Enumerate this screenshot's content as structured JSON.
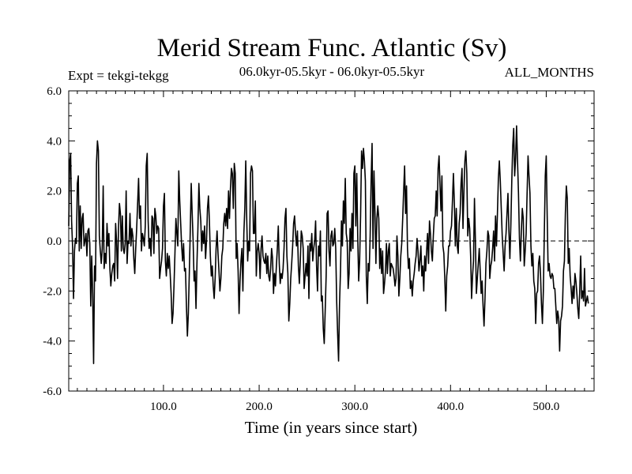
{
  "chart_data": {
    "type": "line",
    "title": "Merid Stream Func. Atlantic (Sv)",
    "subtitle_left": "Expt = tekgi-tekgg",
    "subtitle_center": "06.0kyr-05.5kyr - 06.0kyr-05.5kyr",
    "subtitle_right": "ALL_MONTHS",
    "xlabel": "Time (in years since start)",
    "ylabel": "",
    "xlim": [
      1,
      550
    ],
    "ylim": [
      -6,
      6
    ],
    "xticks": [
      100,
      200,
      300,
      400,
      500
    ],
    "xtick_labels": [
      "100.0",
      "200.0",
      "300.0",
      "400.0",
      "500.0"
    ],
    "yticks": [
      -6,
      -4,
      -2,
      0,
      2,
      4,
      6
    ],
    "ytick_labels": [
      "-6.0",
      "-4.0",
      "-2.0",
      "0.0",
      "2.0",
      "4.0",
      "6.0"
    ],
    "reference_line": {
      "y": 0,
      "style": "dashed"
    },
    "grid": false,
    "line_color": "#000000",
    "series": [
      {
        "x_start": 1,
        "x_step": 1,
        "values": [
          0.6,
          3.2,
          3.5,
          0.8,
          -0.2,
          -2.3,
          -0.4,
          0.1,
          -0.1,
          2.3,
          2.6,
          -0.4,
          1.4,
          -0.3,
          0.9,
          1.1,
          -0.2,
          0.0,
          0.3,
          -0.6,
          0.4,
          0.5,
          -0.1,
          -2.6,
          -0.6,
          -2.1,
          -4.9,
          -1.0,
          -1.6,
          3.1,
          4.0,
          3.6,
          0.2,
          -0.4,
          -0.9,
          -0.3,
          2.2,
          -1.1,
          -0.5,
          -0.9,
          0.7,
          -0.2,
          0.3,
          -1.1,
          -1.8,
          -1.3,
          -1.0,
          -0.9,
          -1.6,
          0.7,
          0.0,
          -1.5,
          0.5,
          1.5,
          1.1,
          -0.4,
          1.0,
          -0.3,
          -0.5,
          -0.1,
          2.0,
          -0.9,
          0.0,
          -0.1,
          1.1,
          -0.2,
          0.5,
          0.2,
          -0.7,
          -1.3,
          -0.3,
          0.5,
          1.5,
          2.5,
          0.9,
          1.4,
          -0.4,
          0.3,
          0.1,
          -0.2,
          0.6,
          3.0,
          3.5,
          0.8,
          -0.3,
          0.1,
          -0.6,
          1.0,
          0.9,
          -0.5,
          1.3,
          1.0,
          0.3,
          0.6,
          0.5,
          -1.5,
          -1.1,
          -0.8,
          -0.3,
          1.4,
          1.9,
          -0.8,
          -1.4,
          -0.5,
          -1.1,
          -0.6,
          -1.3,
          -2.1,
          -3.3,
          -2.9,
          -1.8,
          -0.5,
          0.9,
          0.3,
          -0.2,
          2.8,
          1.6,
          0.7,
          -0.2,
          -0.8,
          -0.1,
          -1.2,
          -1.1,
          -2.6,
          -3.8,
          -2.9,
          -1.3,
          0.4,
          2.3,
          1.1,
          0.0,
          -1.6,
          -1.2,
          -2.7,
          -0.9,
          0.5,
          2.3,
          1.3,
          0.8,
          -0.4,
          0.4,
          -0.1,
          0.6,
          -0.7,
          0.0,
          1.3,
          1.8,
          0.8,
          -0.6,
          -1.4,
          -1.0,
          -1.8,
          -2.3,
          -1.5,
          -0.3,
          0.4,
          -0.5,
          -1.2,
          -2.0,
          -1.5,
          -0.6,
          -0.3,
          0.7,
          1.1,
          0.6,
          1.3,
          0.5,
          2.0,
          0.9,
          2.1,
          2.9,
          2.7,
          1.3,
          3.1,
          2.7,
          -0.7,
          -0.1,
          -1.2,
          -2.9,
          -1.6,
          -0.8,
          -0.3,
          -2.0,
          0.3,
          1.3,
          3.2,
          0.9,
          -0.8,
          0.0,
          -0.4,
          2.7,
          3.0,
          2.8,
          0.3,
          0.3,
          1.6,
          -1.4,
          -0.4,
          -0.1,
          -0.5,
          -1.5,
          -0.3,
          0.2,
          -0.6,
          -0.8,
          -0.9,
          -0.5,
          -1.3,
          -0.6,
          -1.4,
          -1.6,
          -1.1,
          -0.3,
          -0.7,
          -2.1,
          -1.3,
          -1.8,
          -1.0,
          -0.3,
          0.6,
          -0.9,
          -1.7,
          -1.3,
          -1.5,
          -1.1,
          -0.3,
          0.9,
          1.3,
          -0.6,
          -1.3,
          -3.2,
          -2.5,
          -1.5,
          -0.9,
          -0.2,
          0.7,
          1.0,
          0.3,
          -0.2,
          0.4,
          -1.0,
          -1.7,
          -0.8,
          0.4,
          0.2,
          -0.3,
          -1.9,
          -1.4,
          -0.9,
          -1.4,
          -0.2,
          -2.3,
          -0.1,
          -0.4,
          0.3,
          -0.8,
          -0.3,
          0.0,
          0.8,
          -1.0,
          -2.0,
          -0.2,
          -0.6,
          0.4,
          -2.4,
          -2.2,
          -3.5,
          -4.1,
          -2.8,
          -1.4,
          1.1,
          1.2,
          -0.4,
          -1.0,
          0.2,
          0.4,
          -0.2,
          -0.1,
          0.5,
          -0.3,
          -2.4,
          -3.7,
          -4.8,
          -2.5,
          -1.2,
          0.8,
          -0.2,
          1.6,
          0.7,
          2.5,
          0.3,
          0.0,
          -1.9,
          -1.3,
          0.5,
          -0.4,
          1.1,
          -0.3,
          2.7,
          3.0,
          0.6,
          2.7,
          0.2,
          -1.6,
          -0.8,
          1.0,
          3.6,
          2.9,
          3.7,
          3.2,
          2.4,
          -1.4,
          -2.5,
          -0.9,
          -1.2,
          0.2,
          2.4,
          3.9,
          -0.3,
          2.8,
          1.2,
          -0.9,
          0.9,
          1.4,
          0.9,
          -1.1,
          -0.3,
          -1.3,
          -0.4,
          -2.1,
          -1.7,
          -1.2,
          -0.1,
          -1.3,
          -0.4,
          -0.1,
          -1.4,
          -0.9,
          -1.0,
          -1.1,
          -1.4,
          -1.8,
          -1.5,
          0.2,
          -0.6,
          -2.2,
          -1.5,
          -0.6,
          -0.1,
          0.9,
          2.0,
          3.0,
          1.1,
          2.2,
          -0.3,
          -1.1,
          -0.7,
          -1.9,
          -1.6,
          -2.2,
          -1.6,
          -1.3,
          -0.9,
          -0.6,
          0.1,
          -0.4,
          -1.2,
          -0.8,
          -0.2,
          -1.4,
          -1.0,
          -2.0,
          -0.6,
          -1.2,
          -0.4,
          0.3,
          -0.9,
          0.8,
          0.3,
          -0.4,
          -0.8,
          0.2,
          0.9,
          1.0,
          2.0,
          1.0,
          2.9,
          3.4,
          2.2,
          1.2,
          2.6,
          -0.2,
          -0.5,
          -1.5,
          -2.8,
          -1.4,
          -1.0,
          -0.2,
          -0.2,
          0.4,
          0.6,
          1.6,
          2.7,
          1.5,
          -0.2,
          1.3,
          -0.2,
          -0.5,
          0.7,
          1.1,
          2.3,
          2.9,
          0.5,
          2.0,
          3.2,
          3.6,
          2.7,
          0.2,
          0.9,
          0.5,
          -0.6,
          -2.3,
          -1.4,
          -0.8,
          1.7,
          0.0,
          -2.1,
          -1.5,
          -0.9,
          -0.3,
          -1.2,
          -2.1,
          -1.6,
          -2.6,
          -3.4,
          -2.3,
          -0.9,
          -0.4,
          0.4,
          0.2,
          -1.5,
          -1.0,
          -0.8,
          -0.3,
          0.4,
          -0.8,
          1.0,
          -0.2,
          1.1,
          2.5,
          3.2,
          2.4,
          1.3,
          0.2,
          -0.5,
          -1.2,
          -0.2,
          0.3,
          1.1,
          1.9,
          0.4,
          -0.7,
          0.6,
          2.4,
          3.8,
          4.5,
          2.6,
          3.3,
          4.6,
          3.2,
          1.9,
          0.1,
          -0.8,
          0.4,
          1.3,
          0.9,
          -1.0,
          -0.4,
          0.3,
          1.9,
          3.4,
          2.6,
          1.9,
          -0.2,
          -1.0,
          -0.5,
          -1.6,
          -1.9,
          -3.3,
          -2.1,
          -2.0,
          -0.9,
          -0.6,
          -1.3,
          -2.5,
          -3.3,
          -2.0,
          0.3,
          2.6,
          3.4,
          1.0,
          -1.2,
          -0.9,
          -1.4,
          -1.5,
          -1.3,
          -1.4,
          -1.9,
          -1.9,
          -2.6,
          -3.3,
          -2.8,
          -3.1,
          -4.4,
          -3.2,
          -3.0,
          -2.6,
          -1.2,
          -0.8,
          1.1,
          2.2,
          1.7,
          -0.9,
          -0.3,
          -1.4,
          -1.9,
          -2.5,
          -1.8,
          -2.3,
          -1.3,
          -1.6,
          -2.1,
          -2.7,
          -3.1,
          -2.0,
          -0.6,
          -2.3,
          -2.0,
          -2.4,
          -1.1,
          -2.6,
          -2.4,
          -2.2,
          -2.5
        ]
      }
    ]
  }
}
